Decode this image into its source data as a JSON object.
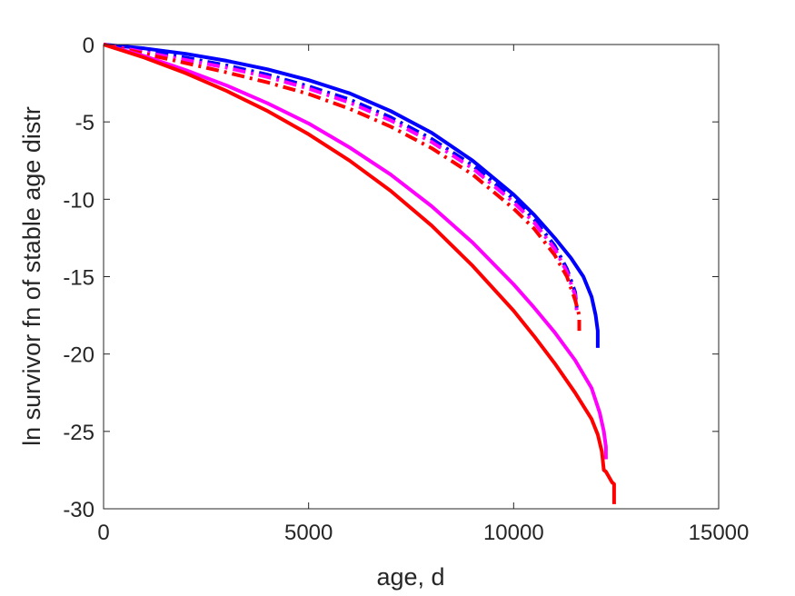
{
  "chart_data": {
    "type": "line",
    "title": "",
    "xlabel": "age, d",
    "ylabel": "ln survivor fn of stable age distr",
    "xlim": [
      0,
      15000
    ],
    "ylim": [
      -30,
      0
    ],
    "xticks": [
      0,
      5000,
      10000,
      15000
    ],
    "yticks": [
      0,
      -5,
      -10,
      -15,
      -20,
      -25,
      -30
    ],
    "xtick_labels": [
      "0",
      "5000",
      "10000",
      "15000"
    ],
    "ytick_labels": [
      "0",
      "-5",
      "-10",
      "-15",
      "-20",
      "-25",
      "-30"
    ],
    "grid": false,
    "series": [
      {
        "color": "#0000ff",
        "style": "solid",
        "x": [
          0,
          1000,
          2000,
          3000,
          4000,
          5000,
          6000,
          7000,
          8000,
          9000,
          10000,
          10500,
          11000,
          11400,
          11700,
          11900,
          12000,
          12050,
          12050
        ],
        "y": [
          0,
          -0.25,
          -0.6,
          -1.05,
          -1.6,
          -2.3,
          -3.15,
          -4.3,
          -5.7,
          -7.5,
          -9.7,
          -11.0,
          -12.5,
          -13.8,
          -15.0,
          -16.3,
          -17.5,
          -18.5,
          -19.6
        ]
      },
      {
        "color": "#0000ff",
        "style": "dashdot",
        "x": [
          0,
          1000,
          2000,
          3000,
          4000,
          5000,
          6000,
          7000,
          8000,
          9000,
          10000,
          10500,
          11000,
          11300,
          11500,
          11550
        ],
        "y": [
          0,
          -0.4,
          -0.85,
          -1.35,
          -1.95,
          -2.7,
          -3.55,
          -4.7,
          -6.1,
          -7.8,
          -10.0,
          -11.3,
          -13.0,
          -14.5,
          -16.0,
          -17.3
        ]
      },
      {
        "color": "#ff00ff",
        "style": "dashdot",
        "x": [
          0,
          1000,
          2000,
          3000,
          4000,
          5000,
          6000,
          7000,
          8000,
          9000,
          10000,
          10500,
          11000,
          11300,
          11500,
          11550
        ],
        "y": [
          0,
          -0.5,
          -1.0,
          -1.5,
          -2.1,
          -2.85,
          -3.75,
          -4.9,
          -6.3,
          -8.0,
          -10.2,
          -11.5,
          -13.2,
          -14.7,
          -16.2,
          -17.5
        ]
      },
      {
        "color": "#ff0000",
        "style": "dashdot",
        "x": [
          0,
          1000,
          2000,
          3000,
          4000,
          5000,
          6000,
          7000,
          8000,
          9000,
          10000,
          10500,
          11000,
          11300,
          11500,
          11600,
          11600
        ],
        "y": [
          0,
          -0.6,
          -1.2,
          -1.8,
          -2.45,
          -3.2,
          -4.15,
          -5.3,
          -6.7,
          -8.4,
          -10.6,
          -11.9,
          -13.6,
          -15.0,
          -16.5,
          -17.5,
          -18.5
        ]
      },
      {
        "color": "#ff00ff",
        "style": "solid",
        "x": [
          0,
          1000,
          2000,
          3000,
          4000,
          5000,
          6000,
          7000,
          8000,
          9000,
          10000,
          10500,
          11000,
          11500,
          11900,
          12100,
          12200,
          12250,
          12250
        ],
        "y": [
          0,
          -0.75,
          -1.65,
          -2.65,
          -3.8,
          -5.1,
          -6.65,
          -8.4,
          -10.45,
          -12.8,
          -15.5,
          -17.0,
          -18.6,
          -20.4,
          -22.2,
          -23.8,
          -25.0,
          -26.0,
          -26.8
        ]
      },
      {
        "color": "#ff0000",
        "style": "solid",
        "x": [
          0,
          1000,
          2000,
          3000,
          4000,
          5000,
          6000,
          7000,
          8000,
          9000,
          10000,
          10500,
          11000,
          11500,
          11900,
          12050,
          12150,
          12200,
          12250,
          12400,
          12450,
          12450
        ],
        "y": [
          0,
          -0.85,
          -1.85,
          -3.0,
          -4.3,
          -5.8,
          -7.5,
          -9.45,
          -11.7,
          -14.3,
          -17.2,
          -18.85,
          -20.6,
          -22.5,
          -24.2,
          -25.2,
          -26.3,
          -27.5,
          -27.6,
          -28.3,
          -28.4,
          -29.7
        ]
      }
    ]
  }
}
